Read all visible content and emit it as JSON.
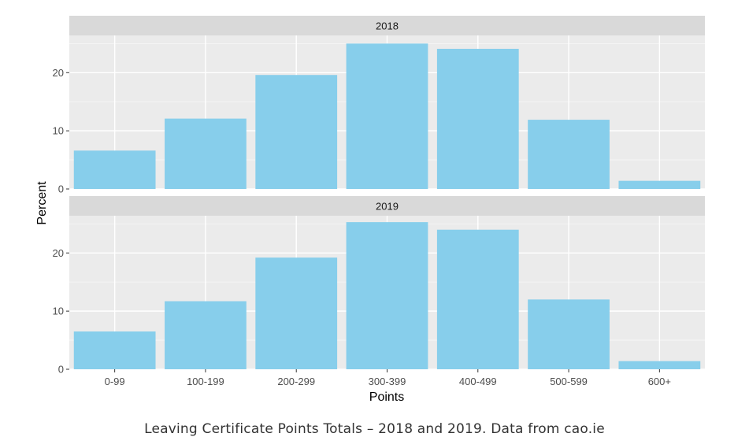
{
  "chart_data": {
    "type": "bar",
    "categories": [
      "0-99",
      "100-199",
      "200-299",
      "300-399",
      "400-499",
      "500-599",
      "600+"
    ],
    "panels": [
      {
        "label": "2018",
        "values": [
          6.6,
          12.1,
          19.6,
          25.0,
          24.1,
          11.9,
          1.4
        ]
      },
      {
        "label": "2019",
        "values": [
          6.5,
          11.7,
          19.2,
          25.3,
          24.0,
          12.0,
          1.4
        ]
      }
    ],
    "y_ticks": [
      "0",
      "10",
      "20"
    ],
    "y_tick_values": [
      0,
      10,
      20
    ],
    "ylim": [
      0,
      26.4
    ],
    "xlabel": "Points",
    "ylabel": "Percent",
    "grid": true,
    "bar_color": "#87CEEB",
    "panel_background": "#EBEBEB",
    "strip_background": "#D9D9D9"
  },
  "caption": "Leaving Certificate Points Totals – 2018 and 2019. Data from cao.ie"
}
